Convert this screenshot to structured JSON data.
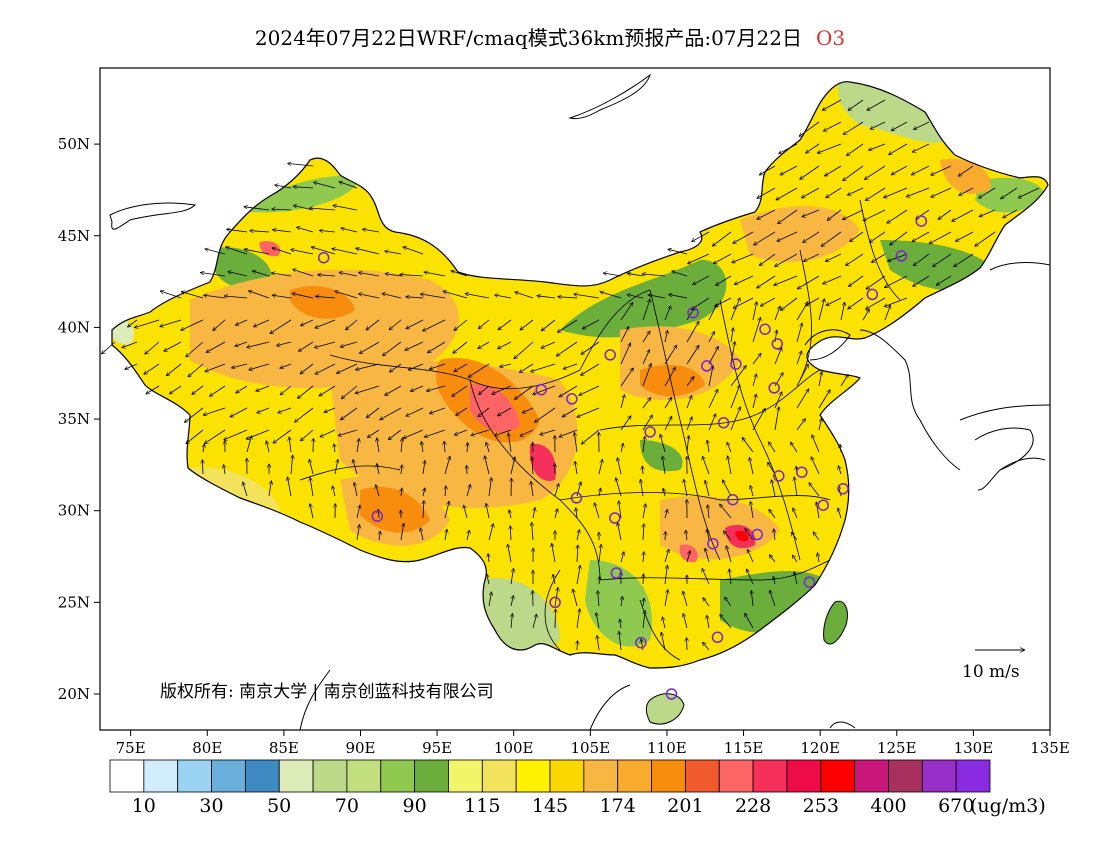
{
  "title": "2024年07月22日WRF/cmaq模式36km预报产品:07月22日",
  "species": "O3",
  "copyright": "版权所有: 南京大学 | 南京创蓝科技有限公司",
  "wind_scale_label": "10 m/s",
  "axes": {
    "lon_ticks": [
      "75E",
      "80E",
      "85E",
      "90E",
      "95E",
      "100E",
      "105E",
      "110E",
      "115E",
      "120E",
      "125E",
      "130E",
      "135E"
    ],
    "lat_ticks": [
      "20N",
      "25N",
      "30N",
      "35N",
      "40N",
      "45N",
      "50N"
    ]
  },
  "colorbar": {
    "unit": "(ug/m3)",
    "colors": [
      "#ffffff",
      "#d2eefc",
      "#9ad4f2",
      "#6aafdc",
      "#3f8ac2",
      "#dcebb8",
      "#bcd98a",
      "#c1df7d",
      "#8fc94f",
      "#6cae3b",
      "#f2f56a",
      "#f3e35c",
      "#fff100",
      "#fbd800",
      "#f7b742",
      "#f8ab2d",
      "#f88c0c",
      "#f05a2c",
      "#fc6466",
      "#f4305a",
      "#ef0a48",
      "#fc0000",
      "#c9167a",
      "#a8305f",
      "#9630c8",
      "#8a2be2"
    ],
    "labels": [
      "10",
      "30",
      "50",
      "70",
      "90",
      "115",
      "145",
      "174",
      "201",
      "228",
      "253",
      "400",
      "670"
    ]
  },
  "stations": [
    {
      "lon": 87.6,
      "lat": 43.8
    },
    {
      "lon": 91.1,
      "lat": 29.7
    },
    {
      "lon": 101.8,
      "lat": 36.6
    },
    {
      "lon": 103.8,
      "lat": 36.1
    },
    {
      "lon": 106.3,
      "lat": 38.5
    },
    {
      "lon": 111.7,
      "lat": 40.8
    },
    {
      "lon": 112.6,
      "lat": 37.9
    },
    {
      "lon": 114.5,
      "lat": 38.0
    },
    {
      "lon": 116.4,
      "lat": 39.9
    },
    {
      "lon": 117.2,
      "lat": 39.1
    },
    {
      "lon": 117.0,
      "lat": 36.7
    },
    {
      "lon": 113.7,
      "lat": 34.8
    },
    {
      "lon": 108.9,
      "lat": 34.3
    },
    {
      "lon": 104.1,
      "lat": 30.7
    },
    {
      "lon": 106.6,
      "lat": 29.6
    },
    {
      "lon": 114.3,
      "lat": 30.6
    },
    {
      "lon": 113.0,
      "lat": 28.2
    },
    {
      "lon": 115.9,
      "lat": 28.7
    },
    {
      "lon": 117.3,
      "lat": 31.9
    },
    {
      "lon": 118.8,
      "lat": 32.1
    },
    {
      "lon": 120.2,
      "lat": 30.3
    },
    {
      "lon": 121.5,
      "lat": 31.2
    },
    {
      "lon": 119.3,
      "lat": 26.1
    },
    {
      "lon": 113.3,
      "lat": 23.1
    },
    {
      "lon": 108.3,
      "lat": 22.8
    },
    {
      "lon": 110.3,
      "lat": 20.0
    },
    {
      "lon": 102.7,
      "lat": 25.0
    },
    {
      "lon": 106.7,
      "lat": 26.6
    },
    {
      "lon": 123.4,
      "lat": 41.8
    },
    {
      "lon": 125.3,
      "lat": 43.9
    },
    {
      "lon": 126.6,
      "lat": 45.8
    }
  ]
}
